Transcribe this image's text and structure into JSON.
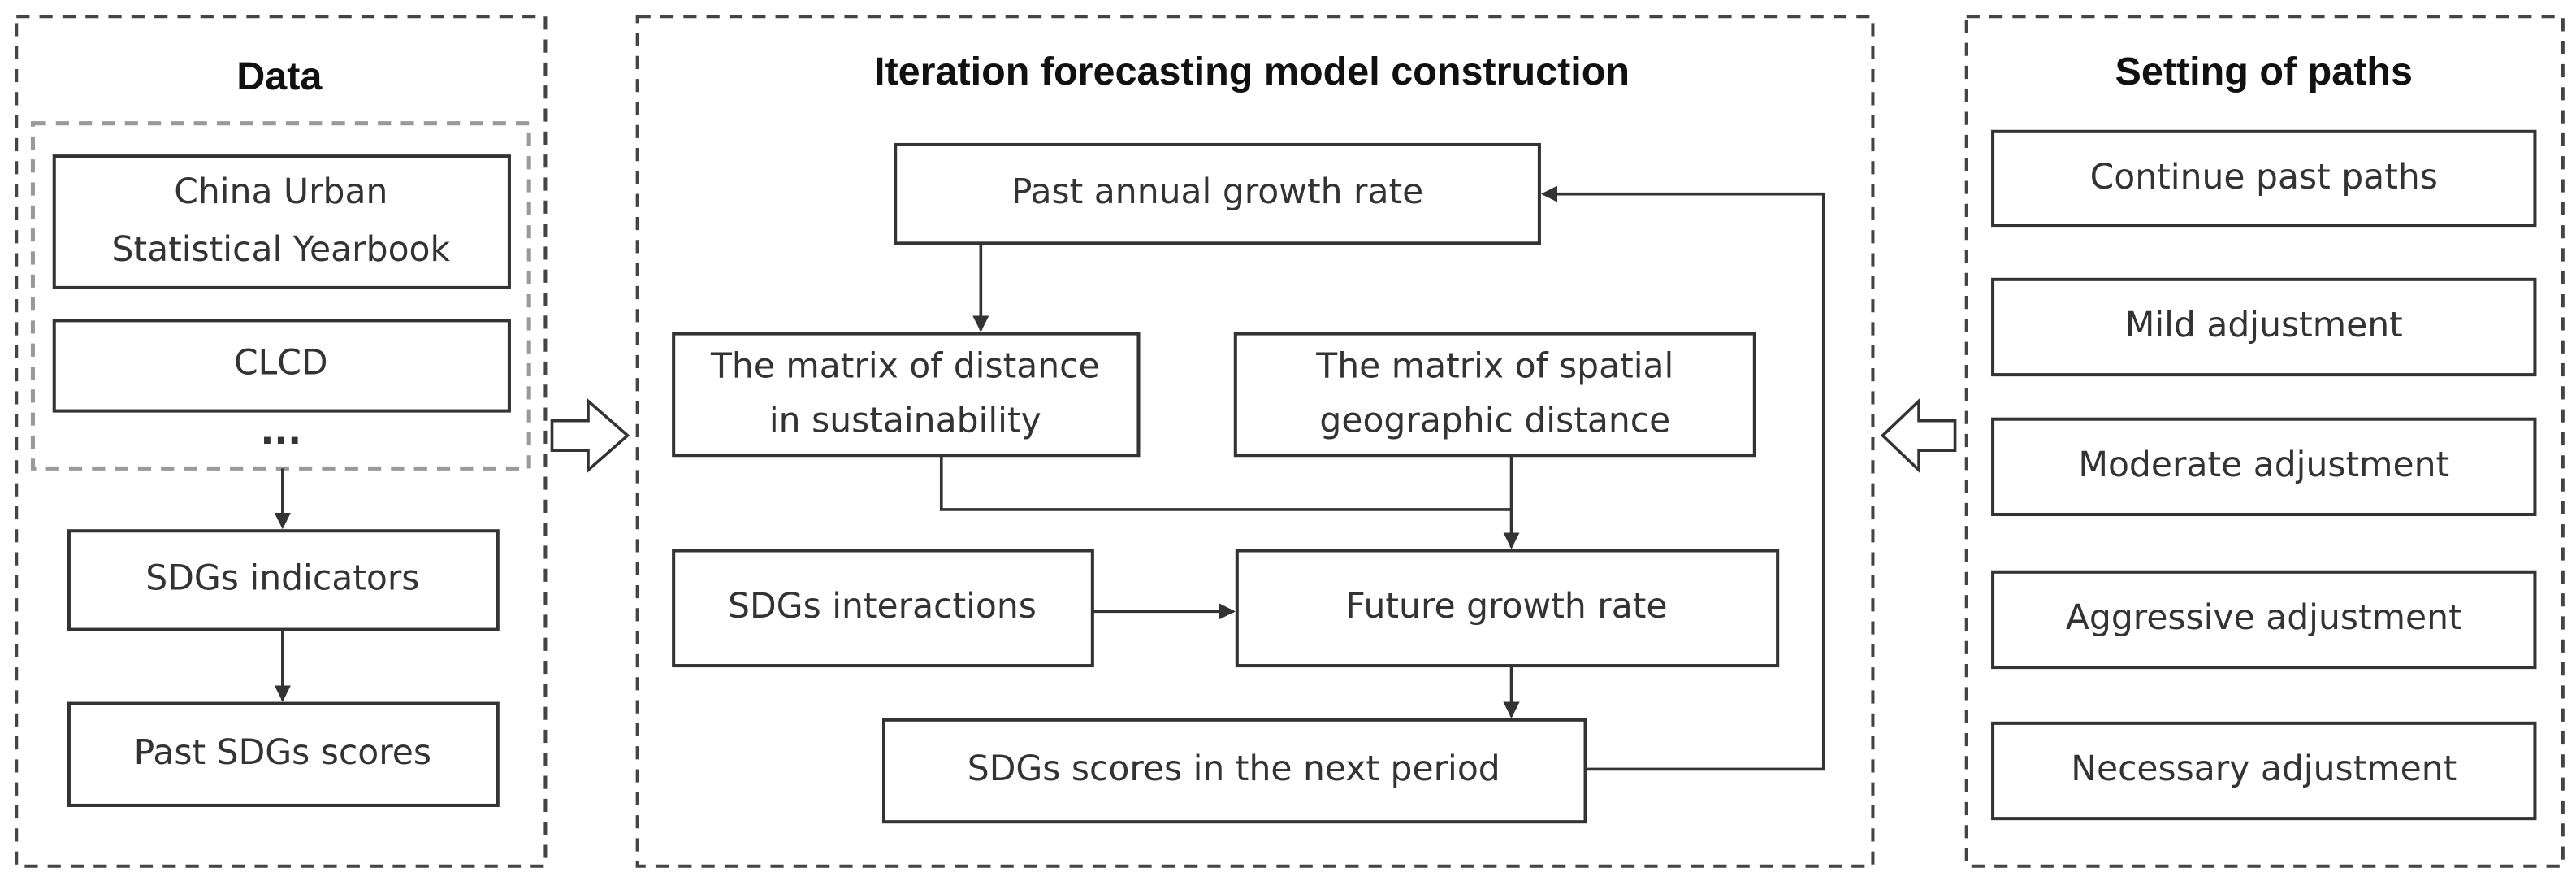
{
  "data_panel": {
    "title": "Data",
    "sources": [
      {
        "lines": [
          "China Urban",
          "Statistical Yearbook"
        ]
      },
      {
        "lines": [
          "CLCD"
        ]
      }
    ],
    "ellipsis": "...",
    "steps": [
      "SDGs indicators",
      "Past SDGs scores"
    ]
  },
  "model_panel": {
    "title": "Iteration forecasting model construction",
    "nodes": [
      {
        "lines": [
          "Past annual growth rate"
        ]
      },
      {
        "lines": [
          "The matrix of distance",
          "in sustainability"
        ]
      },
      {
        "lines": [
          "The matrix of spatial",
          "geographic distance"
        ]
      },
      {
        "lines": [
          "SDGs interactions"
        ]
      },
      {
        "lines": [
          "Future growth rate"
        ]
      },
      {
        "lines": [
          "SDGs scores in the next period"
        ]
      }
    ]
  },
  "paths_panel": {
    "title": "Setting of paths",
    "paths": [
      "Continue past paths",
      "Mild adjustment",
      "Moderate adjustment",
      "Aggressive adjustment",
      "Necessary adjustment"
    ]
  }
}
